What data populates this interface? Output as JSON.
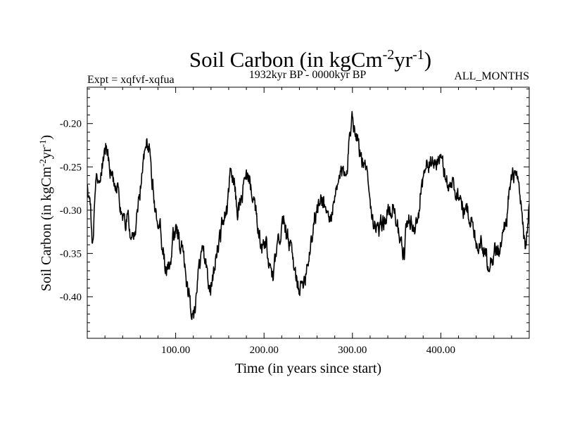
{
  "chart_data": {
    "type": "line",
    "title": {
      "main": "Soil Carbon (in kgCm",
      "sup1": "-2",
      "mid": "yr",
      "sup2": "-1",
      "end": ")"
    },
    "subtitle_left": "Expt = xqfvf-xqfua",
    "subtitle_center": "1932kyr BP - 0000kyr BP",
    "subtitle_right": "ALL_MONTHS",
    "xlabel": "Time (in years since start)",
    "ylabel": {
      "main": "Soil Carbon (in kgCm",
      "sup1": "-2",
      "mid": "yr",
      "sup2": "-1",
      "end": ")"
    },
    "xlim": [
      0,
      500
    ],
    "ylim": [
      -0.448,
      -0.158
    ],
    "x_ticks": [
      100,
      200,
      300,
      400
    ],
    "x_tick_labels": [
      "100.00",
      "200.00",
      "300.00",
      "400.00"
    ],
    "y_ticks": [
      -0.2,
      -0.25,
      -0.3,
      -0.35,
      -0.4
    ],
    "y_tick_labels": [
      "-0.20",
      "-0.25",
      "-0.30",
      "-0.35",
      "-0.40"
    ],
    "series": [
      {
        "name": "Soil Carbon",
        "color": "#000000",
        "keypoints": {
          "x": [
            0,
            3,
            6,
            10,
            14,
            18,
            22,
            26,
            30,
            34,
            38,
            42,
            46,
            50,
            54,
            58,
            62,
            66,
            70,
            74,
            78,
            82,
            86,
            90,
            94,
            98,
            102,
            106,
            110,
            114,
            118,
            120,
            122,
            126,
            130,
            134,
            138,
            142,
            146,
            150,
            154,
            158,
            162,
            166,
            170,
            174,
            178,
            182,
            186,
            190,
            194,
            198,
            202,
            206,
            210,
            214,
            218,
            222,
            226,
            230,
            234,
            238,
            242,
            246,
            250,
            254,
            258,
            262,
            266,
            270,
            274,
            278,
            282,
            286,
            290,
            294,
            298,
            300,
            302,
            306,
            310,
            314,
            318,
            322,
            326,
            330,
            334,
            338,
            342,
            346,
            350,
            354,
            358,
            362,
            366,
            370,
            374,
            378,
            382,
            386,
            390,
            394,
            398,
            402,
            406,
            410,
            414,
            418,
            422,
            426,
            430,
            434,
            438,
            442,
            446,
            450,
            454,
            458,
            462,
            466,
            470,
            474,
            478,
            482,
            486,
            490,
            494,
            496,
            498,
            500
          ],
          "y": [
            -0.275,
            -0.29,
            -0.335,
            -0.27,
            -0.26,
            -0.245,
            -0.225,
            -0.255,
            -0.265,
            -0.27,
            -0.3,
            -0.315,
            -0.31,
            -0.34,
            -0.33,
            -0.29,
            -0.26,
            -0.22,
            -0.225,
            -0.27,
            -0.31,
            -0.32,
            -0.35,
            -0.375,
            -0.36,
            -0.33,
            -0.325,
            -0.34,
            -0.36,
            -0.395,
            -0.415,
            -0.425,
            -0.41,
            -0.37,
            -0.345,
            -0.36,
            -0.395,
            -0.38,
            -0.35,
            -0.33,
            -0.31,
            -0.3,
            -0.26,
            -0.27,
            -0.3,
            -0.29,
            -0.27,
            -0.26,
            -0.275,
            -0.3,
            -0.33,
            -0.345,
            -0.34,
            -0.365,
            -0.38,
            -0.35,
            -0.33,
            -0.31,
            -0.335,
            -0.34,
            -0.37,
            -0.385,
            -0.39,
            -0.375,
            -0.355,
            -0.33,
            -0.305,
            -0.295,
            -0.285,
            -0.3,
            -0.31,
            -0.3,
            -0.28,
            -0.26,
            -0.255,
            -0.245,
            -0.205,
            -0.185,
            -0.205,
            -0.215,
            -0.24,
            -0.255,
            -0.26,
            -0.305,
            -0.32,
            -0.325,
            -0.315,
            -0.31,
            -0.3,
            -0.295,
            -0.31,
            -0.34,
            -0.35,
            -0.315,
            -0.31,
            -0.325,
            -0.31,
            -0.27,
            -0.255,
            -0.245,
            -0.25,
            -0.245,
            -0.24,
            -0.25,
            -0.265,
            -0.27,
            -0.27,
            -0.28,
            -0.285,
            -0.3,
            -0.3,
            -0.31,
            -0.33,
            -0.34,
            -0.335,
            -0.35,
            -0.36,
            -0.355,
            -0.345,
            -0.35,
            -0.33,
            -0.31,
            -0.275,
            -0.26,
            -0.265,
            -0.29,
            -0.33,
            -0.34,
            -0.32,
            -0.3
          ]
        },
        "noise_amplitude": 0.0085,
        "samples": 1200,
        "seed": 1932
      }
    ]
  }
}
